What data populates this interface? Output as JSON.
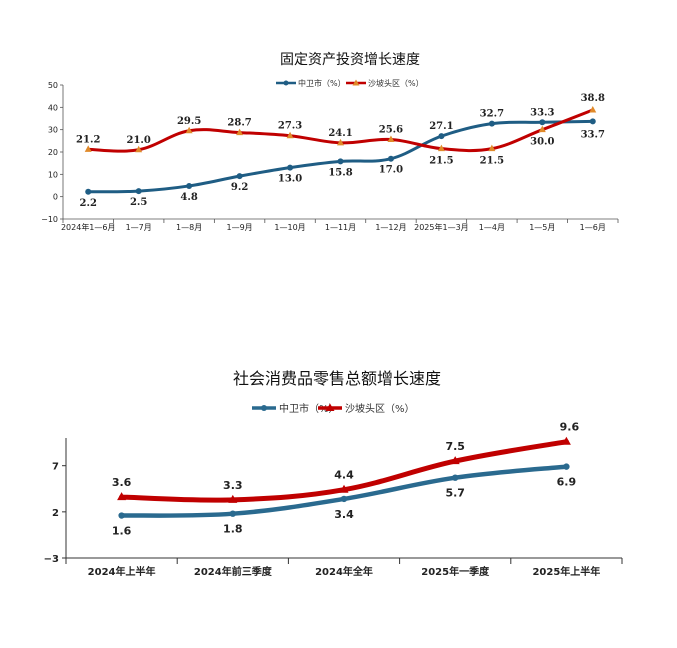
{
  "chart_data": [
    {
      "type": "line",
      "title": "固定资产投资增长速度",
      "categories": [
        "2024年1—6月",
        "1—7月",
        "1—8月",
        "1—9月",
        "1—10月",
        "1—11月",
        "1—12月",
        "2025年1—3月",
        "1—4月",
        "1—5月",
        "1—6月"
      ],
      "ylim": [
        -10,
        50
      ],
      "yticks": [
        "50",
        "40",
        "30",
        "20",
        "10",
        "0",
        "−10"
      ],
      "legend_position": "top",
      "series": [
        {
          "name": "中卫市（%）",
          "color": "#1f5d84",
          "marker": "circle",
          "values": [
            2.2,
            2.5,
            4.8,
            9.2,
            13.0,
            15.8,
            17.0,
            27.1,
            32.7,
            33.3,
            33.7
          ],
          "labels": [
            "2.2",
            "2.5",
            "4.8",
            "9.2",
            "13.0",
            "15.8",
            "17.0",
            "27.1",
            "32.7",
            "33.3",
            "33.7"
          ]
        },
        {
          "name": "沙坡头区（%）",
          "color": "#c00000",
          "marker": "triangle",
          "values": [
            21.2,
            21.0,
            29.5,
            28.7,
            27.3,
            24.1,
            25.6,
            21.5,
            21.5,
            30.0,
            38.8
          ],
          "labels": [
            "21.2",
            "21.0",
            "29.5",
            "28.7",
            "27.3",
            "24.1",
            "25.6",
            "21.5",
            "21.5",
            "30.0",
            "38.8"
          ]
        }
      ]
    },
    {
      "type": "line",
      "title": "社会消费品零售总额增长速度",
      "categories": [
        "2024年上半年",
        "2024年前三季度",
        "2024年全年",
        "2025年一季度",
        "2025年上半年"
      ],
      "ylim": [
        -3,
        10
      ],
      "yticks": [
        "7",
        "2",
        "−3"
      ],
      "legend_position": "top",
      "series": [
        {
          "name": "中卫市（%）",
          "color": "#2a6a8f",
          "marker": "circle",
          "values": [
            1.6,
            1.8,
            3.4,
            5.7,
            6.9
          ],
          "labels": [
            "1.6",
            "1.8",
            "3.4",
            "5.7",
            "6.9"
          ]
        },
        {
          "name": "沙坡头区（%）",
          "color": "#c00000",
          "marker": "triangle",
          "values": [
            3.6,
            3.3,
            4.4,
            7.5,
            9.6
          ],
          "labels": [
            "3.6",
            "3.3",
            "4.4",
            "7.5",
            "9.6"
          ]
        }
      ]
    }
  ]
}
